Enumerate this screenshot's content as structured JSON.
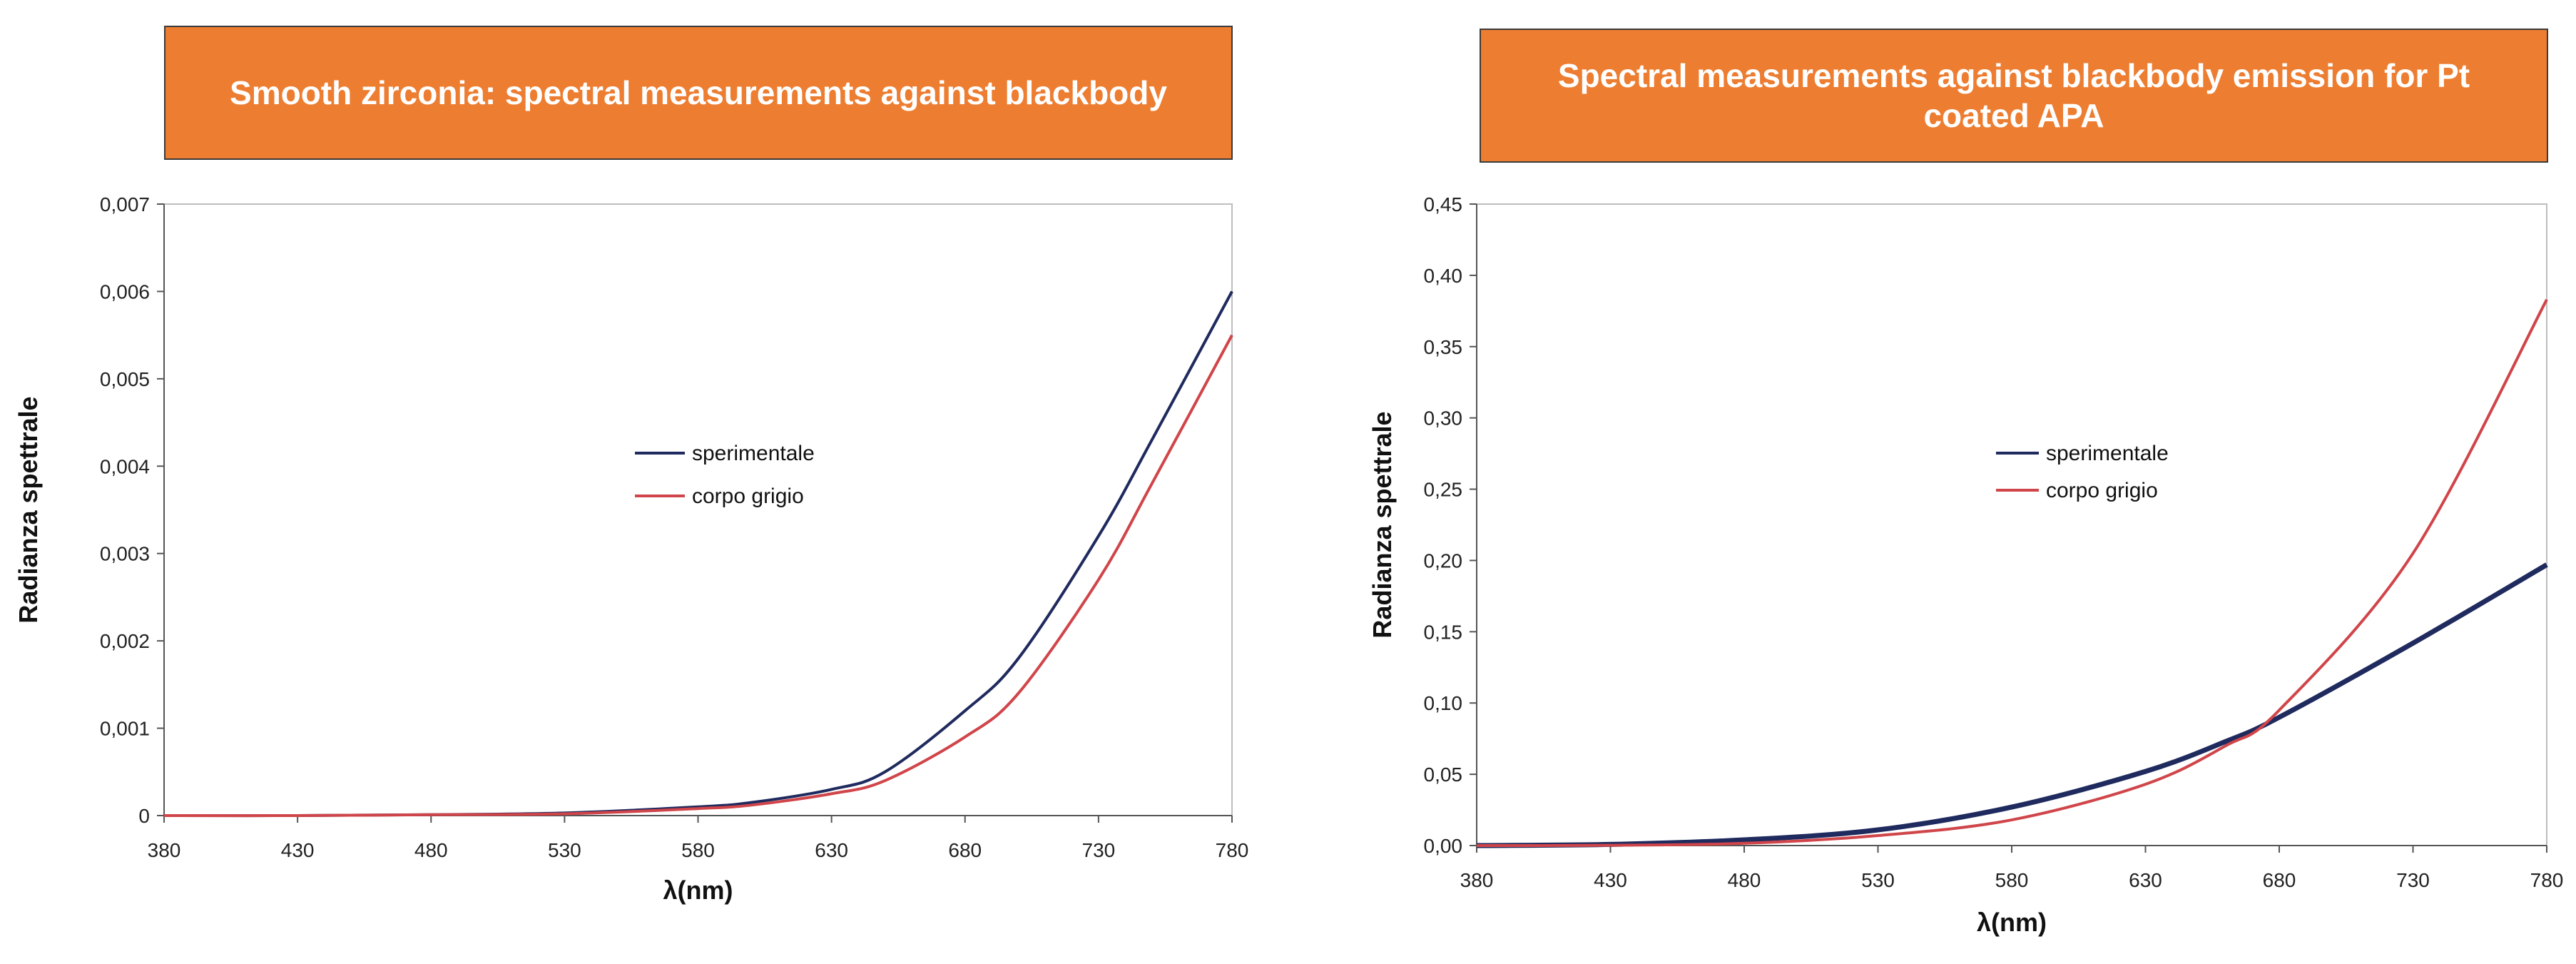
{
  "titles": {
    "left": "Smooth  zirconia: spectral measurements against blackbody",
    "right": "Spectral measurements against  blackbody emission for Pt coated APA"
  },
  "colors": {
    "title_bg": "#ED7D31",
    "sperimentale": "#1F2A5E",
    "corpo_grigio": "#D0454A"
  },
  "chart_data": [
    {
      "type": "line",
      "title": "Smooth  zirconia: spectral measurements against blackbody",
      "xlabel": "λ(nm)",
      "ylabel": "Radianza spettrale",
      "xlim": [
        380,
        780
      ],
      "ylim": [
        0,
        0.007
      ],
      "x_ticks": [
        380,
        430,
        480,
        530,
        580,
        630,
        680,
        730,
        780
      ],
      "y_ticks": [
        "0",
        "0,001",
        "0,002",
        "0,003",
        "0,004",
        "0,005",
        "0,006",
        "0,007"
      ],
      "legend_position": "center",
      "x": [
        380,
        430,
        480,
        530,
        580,
        600,
        630,
        650,
        680,
        700,
        730,
        750,
        780
      ],
      "series": [
        {
          "name": "sperimentale",
          "values": [
            0,
            0,
            1e-05,
            3e-05,
            0.0001,
            0.00015,
            0.0003,
            0.0005,
            0.0012,
            0.0018,
            0.0032,
            0.0043,
            0.006
          ]
        },
        {
          "name": "corpo grigio",
          "values": [
            0,
            0,
            1e-05,
            2e-05,
            8e-05,
            0.00012,
            0.00025,
            0.0004,
            0.0009,
            0.0014,
            0.0027,
            0.0038,
            0.0055
          ]
        }
      ]
    },
    {
      "type": "line",
      "title": "Spectral measurements against  blackbody emission for Pt coated APA",
      "xlabel": "λ(nm)",
      "ylabel": "Radianza spettrale",
      "xlim": [
        380,
        780
      ],
      "ylim": [
        0,
        0.45
      ],
      "x_ticks": [
        380,
        430,
        480,
        530,
        580,
        630,
        680,
        730,
        780
      ],
      "y_ticks": [
        "0,00",
        "0,05",
        "0,10",
        "0,15",
        "0,20",
        "0,25",
        "0,30",
        "0,35",
        "0,40",
        "0,45"
      ],
      "legend_position": "center",
      "x": [
        380,
        430,
        480,
        530,
        580,
        630,
        660,
        680,
        730,
        780
      ],
      "series": [
        {
          "name": "sperimentale",
          "values": [
            0,
            0.0008,
            0.004,
            0.011,
            0.027,
            0.052,
            0.073,
            0.09,
            0.142,
            0.197
          ]
        },
        {
          "name": "corpo grigio",
          "values": [
            0,
            0.0002,
            0.0016,
            0.007,
            0.018,
            0.043,
            0.07,
            0.095,
            0.205,
            0.383
          ]
        }
      ]
    }
  ]
}
